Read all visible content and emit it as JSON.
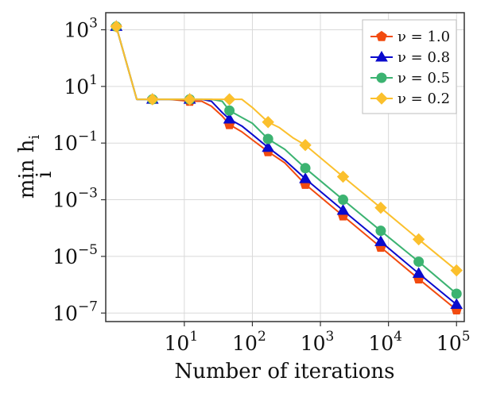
{
  "chart_data": {
    "type": "line",
    "xscale": "log",
    "yscale": "log",
    "xlim": [
      0.7,
      130000
    ],
    "ylim": [
      5e-08,
      4000
    ],
    "xticks": [
      {
        "value": 10,
        "base": "10",
        "exp": "1"
      },
      {
        "value": 100,
        "base": "10",
        "exp": "2"
      },
      {
        "value": 1000,
        "base": "10",
        "exp": "3"
      },
      {
        "value": 10000,
        "base": "10",
        "exp": "4"
      },
      {
        "value": 100000,
        "base": "10",
        "exp": "5"
      }
    ],
    "yticks": [
      {
        "value": 1000,
        "base": "10",
        "exp": "3"
      },
      {
        "value": 10,
        "base": "10",
        "exp": "1"
      },
      {
        "value": 0.1,
        "base": "10",
        "exp": "−1"
      },
      {
        "value": 0.001,
        "base": "10",
        "exp": "−3"
      },
      {
        "value": 1e-05,
        "base": "10",
        "exp": "−5"
      },
      {
        "value": 1e-07,
        "base": "10",
        "exp": "−7"
      }
    ],
    "xlabel": "Number of iterations",
    "ylabel": {
      "main": "min h",
      "sub_i": "i",
      "sub_under": "i"
    },
    "grid": true,
    "legend_position": "top-right",
    "series": [
      {
        "name": "ν = 1.0",
        "color": "#f24b0f",
        "marker": "pentagon",
        "x": [
          1,
          2,
          3.4,
          6,
          12,
          18,
          25,
          36,
          46,
          70,
          100,
          170,
          300,
          600,
          2150,
          7700,
          27800,
          100000
        ],
        "y": [
          1300,
          3.5,
          3.5,
          3.5,
          3.0,
          3.0,
          2.0,
          0.9,
          0.45,
          0.25,
          0.13,
          0.05,
          0.02,
          0.0035,
          0.00027,
          2.1e-05,
          1.6e-06,
          1.3e-07
        ],
        "marker_x": [
          1,
          3.4,
          12,
          46,
          170,
          600,
          2150,
          7700,
          27800,
          100000
        ],
        "marker_y": [
          1300,
          3.5,
          3.0,
          0.45,
          0.05,
          0.0035,
          0.00027,
          2.1e-05,
          1.6e-06,
          1.3e-07
        ]
      },
      {
        "name": "ν = 0.8",
        "color": "#0a0acd",
        "marker": "triangle",
        "x": [
          1,
          2,
          3.4,
          6,
          12,
          18,
          25,
          36,
          46,
          70,
          100,
          170,
          300,
          600,
          2150,
          7700,
          27800,
          100000
        ],
        "y": [
          1300,
          3.5,
          3.5,
          3.5,
          3.5,
          3.5,
          3.0,
          1.2,
          0.7,
          0.4,
          0.2,
          0.07,
          0.025,
          0.0055,
          0.00042,
          3.3e-05,
          2.5e-06,
          2e-07
        ],
        "marker_x": [
          1,
          3.4,
          12,
          46,
          170,
          600,
          2150,
          7700,
          27800,
          100000
        ],
        "marker_y": [
          1300,
          3.5,
          3.5,
          0.7,
          0.07,
          0.0055,
          0.00042,
          3.3e-05,
          2.5e-06,
          2e-07
        ]
      },
      {
        "name": "ν = 0.5",
        "color": "#3cb371",
        "marker": "circle",
        "x": [
          1,
          2,
          3.4,
          6,
          12,
          18,
          25,
          36,
          46,
          70,
          100,
          170,
          300,
          600,
          2150,
          7700,
          27800,
          100000
        ],
        "y": [
          1300,
          3.5,
          3.5,
          3.5,
          3.5,
          3.5,
          3.5,
          3.0,
          1.4,
          0.8,
          0.5,
          0.14,
          0.06,
          0.013,
          0.001,
          8e-05,
          6.5e-06,
          4.8e-07
        ],
        "marker_x": [
          1,
          3.4,
          12,
          46,
          170,
          600,
          2150,
          7700,
          27800,
          100000
        ],
        "marker_y": [
          1300,
          3.5,
          3.5,
          1.4,
          0.14,
          0.013,
          0.001,
          8e-05,
          6.5e-06,
          4.8e-07
        ]
      },
      {
        "name": "ν = 0.2",
        "color": "#fbc02d",
        "marker": "diamond",
        "x": [
          1,
          2,
          3.4,
          6,
          12,
          18,
          25,
          36,
          46,
          70,
          100,
          170,
          250,
          400,
          600,
          2150,
          7700,
          27800,
          100000
        ],
        "y": [
          1300,
          3.5,
          3.5,
          3.5,
          3.5,
          3.5,
          3.5,
          3.5,
          3.5,
          3.5,
          1.8,
          0.55,
          0.35,
          0.15,
          0.085,
          0.0065,
          0.00052,
          4e-05,
          3.2e-06
        ],
        "marker_x": [
          1,
          3.4,
          12,
          46,
          170,
          600,
          2150,
          7700,
          27800,
          100000
        ],
        "marker_y": [
          1300,
          3.5,
          3.5,
          3.5,
          0.55,
          0.085,
          0.0065,
          0.00052,
          4e-05,
          3.2e-06
        ]
      }
    ]
  }
}
